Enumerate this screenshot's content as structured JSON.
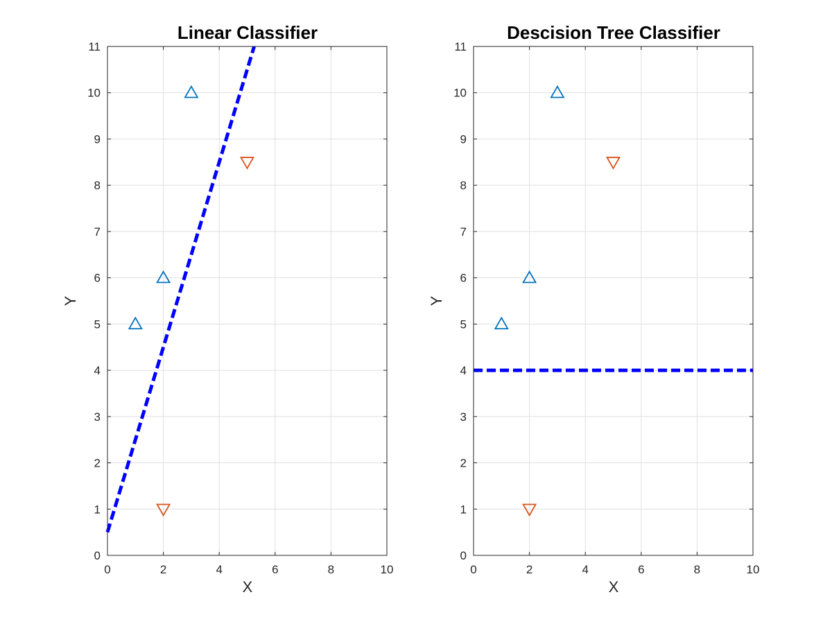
{
  "chart_data": [
    {
      "type": "scatter",
      "title": "Linear Classifier",
      "xlabel": "X",
      "ylabel": "Y",
      "xlim": [
        0,
        10
      ],
      "ylim": [
        0,
        11
      ],
      "xticks": [
        "0",
        "2",
        "4",
        "6",
        "8",
        "10"
      ],
      "yticks": [
        "0",
        "1",
        "2",
        "3",
        "4",
        "5",
        "6",
        "7",
        "8",
        "9",
        "10",
        "11"
      ],
      "grid": true,
      "series": [
        {
          "marker": "triangle-up",
          "color": "#0072BD",
          "points": [
            [
              1,
              5
            ],
            [
              2,
              6
            ],
            [
              3,
              10
            ]
          ]
        },
        {
          "marker": "triangle-down",
          "color": "#D95319",
          "points": [
            [
              2,
              1
            ],
            [
              5,
              8.5
            ]
          ]
        }
      ],
      "boundary": {
        "style": "dashed",
        "color": "#0000FF",
        "points": [
          [
            0,
            0.5
          ],
          [
            5.25,
            11
          ]
        ]
      }
    },
    {
      "type": "scatter",
      "title": "Descision Tree Classifier",
      "xlabel": "X",
      "ylabel": "Y",
      "xlim": [
        0,
        10
      ],
      "ylim": [
        0,
        11
      ],
      "xticks": [
        "0",
        "2",
        "4",
        "6",
        "8",
        "10"
      ],
      "yticks": [
        "0",
        "1",
        "2",
        "3",
        "4",
        "5",
        "6",
        "7",
        "8",
        "9",
        "10",
        "11"
      ],
      "grid": true,
      "series": [
        {
          "marker": "triangle-up",
          "color": "#0072BD",
          "points": [
            [
              1,
              5
            ],
            [
              2,
              6
            ],
            [
              3,
              10
            ]
          ]
        },
        {
          "marker": "triangle-down",
          "color": "#D95319",
          "points": [
            [
              2,
              1
            ],
            [
              5,
              8.5
            ]
          ]
        }
      ],
      "boundary": {
        "style": "dashed",
        "color": "#0000FF",
        "points": [
          [
            0,
            4
          ],
          [
            10,
            4
          ]
        ]
      }
    }
  ]
}
